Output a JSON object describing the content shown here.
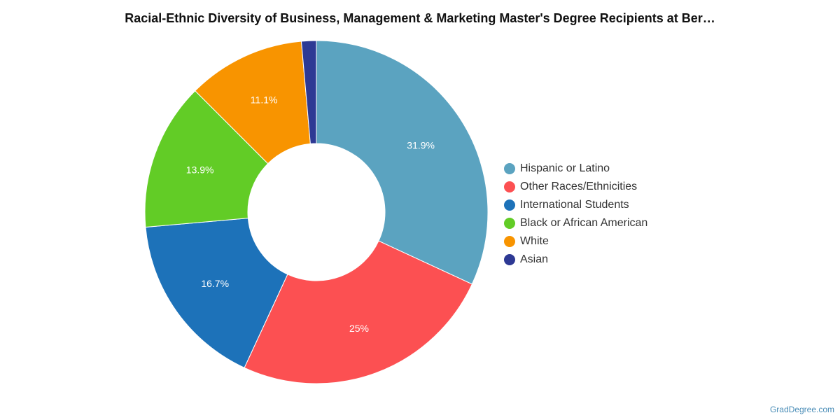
{
  "chart_data": {
    "type": "pie",
    "title": "Racial-Ethnic Diversity of Business, Management & Marketing Master's Degree Recipients at Ber…",
    "series": [
      {
        "name": "Hispanic or Latino",
        "value": 31.9,
        "label": "31.9%",
        "color": "#5ba3c0"
      },
      {
        "name": "Other Races/Ethnicities",
        "value": 25,
        "label": "25%",
        "color": "#fc5052"
      },
      {
        "name": "International Students",
        "value": 16.7,
        "label": "16.7%",
        "color": "#1d72b9"
      },
      {
        "name": "Black or African American",
        "value": 13.9,
        "label": "13.9%",
        "color": "#62cc26"
      },
      {
        "name": "White",
        "value": 11.1,
        "label": "11.1%",
        "color": "#f89400"
      },
      {
        "name": "Asian",
        "value": 1.4,
        "label": "",
        "color": "#2d3994"
      }
    ],
    "legend_position": "right"
  },
  "credit": "GradDegree.com"
}
